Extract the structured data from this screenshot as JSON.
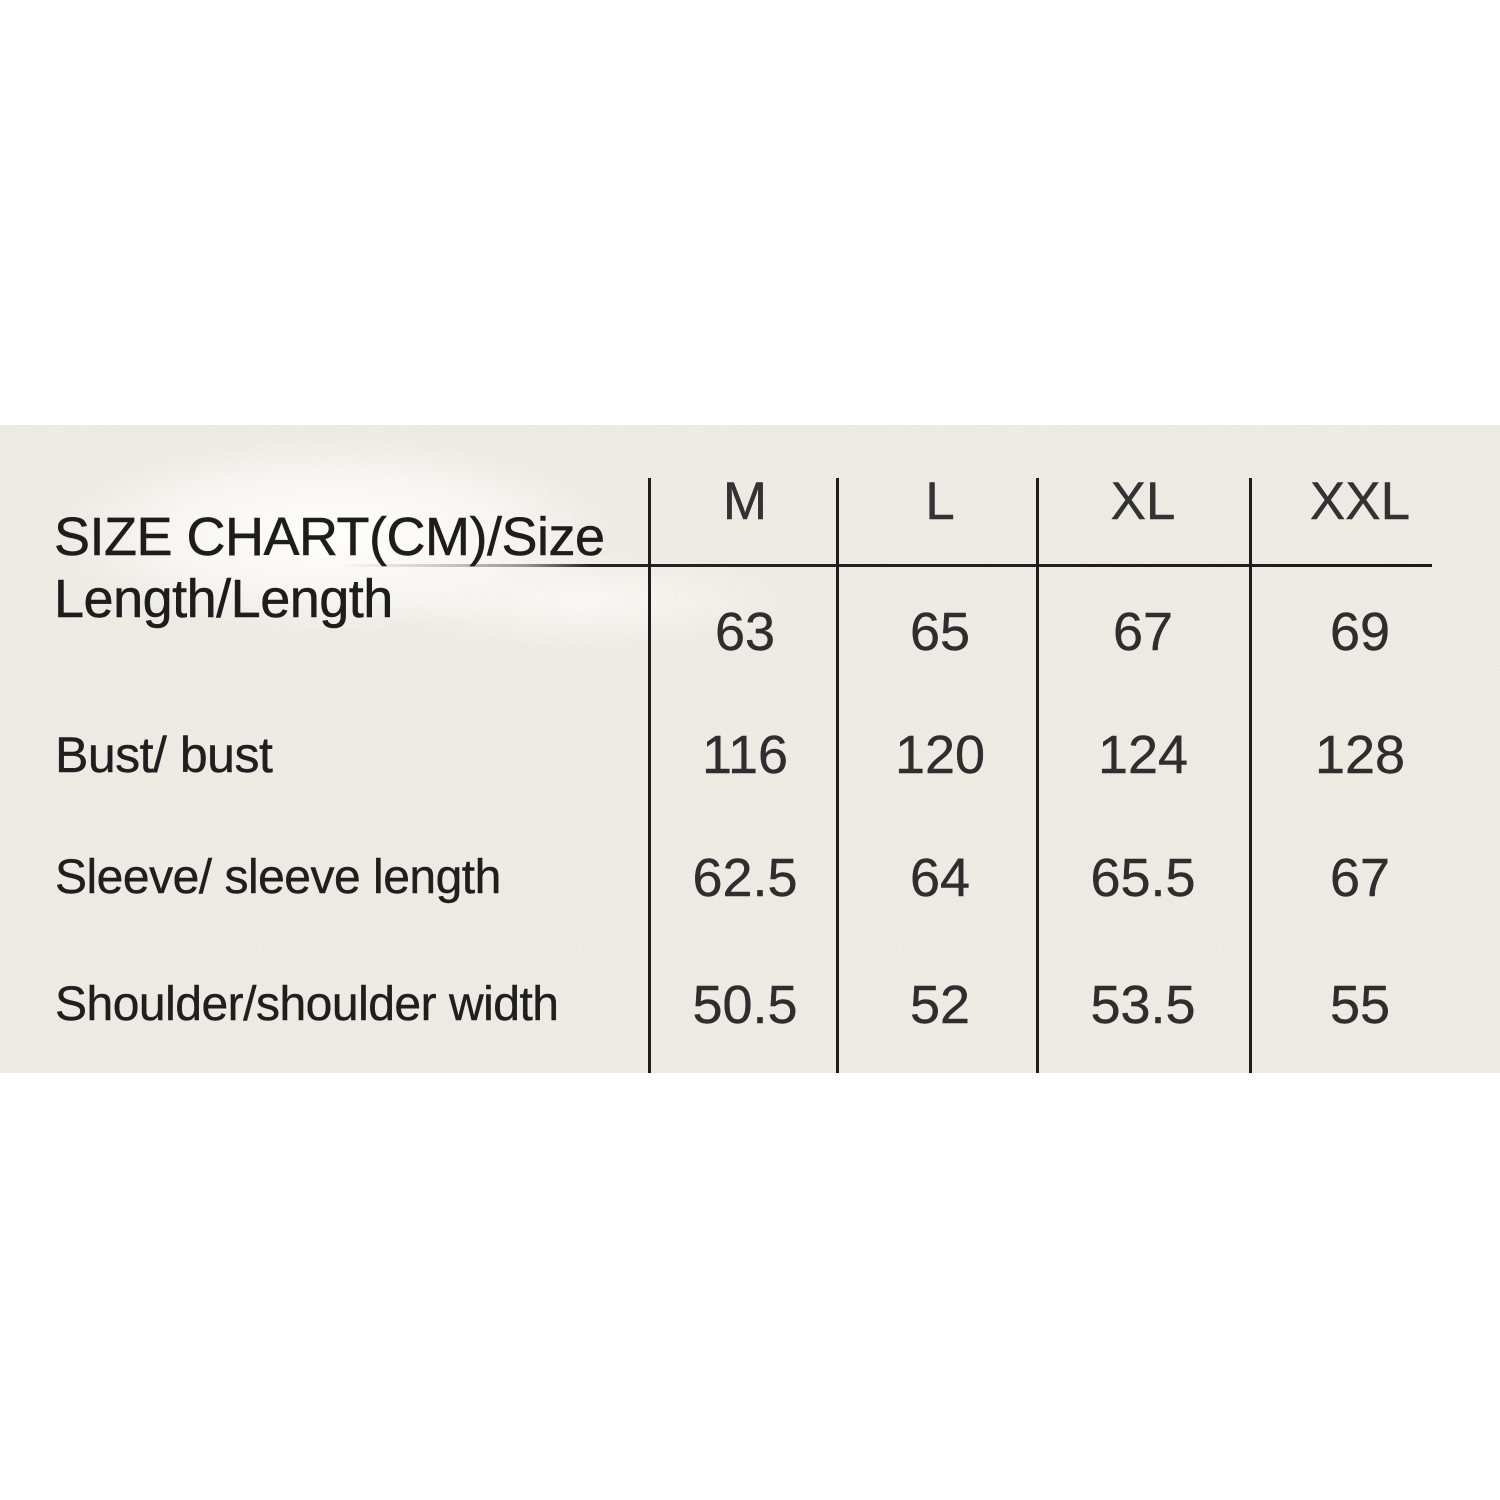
{
  "panel": {
    "background_color": "#f0eee6",
    "page_background_color": "#ffffff",
    "line_color": "#1d1d1d",
    "text_color": "#1f1f1f"
  },
  "table": {
    "title": {
      "line1": "SIZE CHART(CM)/Size",
      "line2": "Length/Length"
    },
    "columns": [
      "M",
      "L",
      "XL",
      "XXL"
    ],
    "rows": [
      {
        "label": "Length/Length",
        "values": [
          "63",
          "65",
          "67",
          "69"
        ]
      },
      {
        "label": "Bust/ bust",
        "values": [
          "116",
          "120",
          "124",
          "128"
        ]
      },
      {
        "label": "Sleeve/ sleeve length",
        "values": [
          "62.5",
          "64",
          "65.5",
          "67"
        ]
      },
      {
        "label": "Shoulder/shoulder width",
        "values": [
          "50.5",
          "52",
          "53.5",
          "55"
        ]
      }
    ]
  }
}
